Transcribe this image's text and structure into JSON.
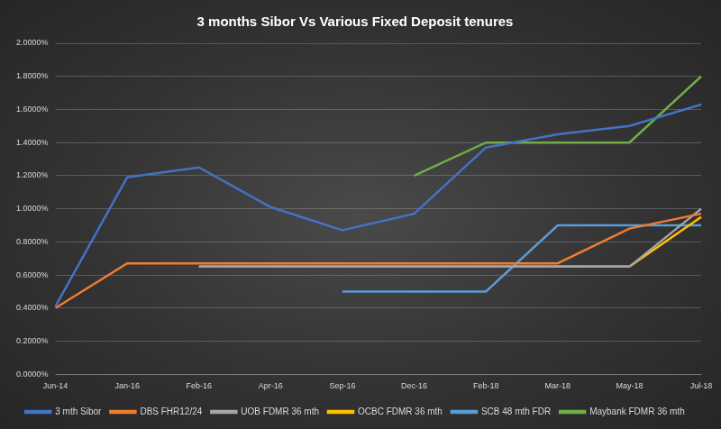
{
  "chart_data": {
    "type": "line",
    "title": "3 months Sibor Vs Various Fixed Deposit tenures",
    "categories": [
      "Jun-14",
      "Jan-16",
      "Feb-16",
      "Apr-16",
      "Sep-16",
      "Dec-16",
      "Feb-18",
      "Mar-18",
      "May-18",
      "Jul-18"
    ],
    "series": [
      {
        "name": "3 mth Sibor",
        "color": "#4472c4",
        "values": [
          0.41,
          1.19,
          1.25,
          1.01,
          0.87,
          0.97,
          1.37,
          1.45,
          1.5,
          1.63
        ]
      },
      {
        "name": "DBS FHR12/24",
        "color": "#ed7d31",
        "values": [
          0.4,
          0.67,
          0.67,
          0.67,
          0.67,
          0.67,
          0.67,
          0.67,
          0.88,
          0.97
        ]
      },
      {
        "name": "UOB FDMR 36 mth",
        "color": "#a5a5a5",
        "values": [
          null,
          null,
          0.65,
          0.65,
          0.65,
          0.65,
          0.65,
          0.65,
          0.65,
          1.0
        ]
      },
      {
        "name": "OCBC FDMR 36 mth",
        "color": "#ffc000",
        "values": [
          null,
          null,
          0.65,
          0.65,
          0.65,
          0.65,
          0.65,
          0.65,
          0.65,
          0.95
        ]
      },
      {
        "name": "SCB 48 mth FDR",
        "color": "#5b9bd5",
        "values": [
          null,
          null,
          null,
          null,
          0.5,
          0.5,
          0.5,
          0.9,
          0.9,
          0.9
        ]
      },
      {
        "name": "Maybank FDMR 36 mth",
        "color": "#70ad47",
        "values": [
          null,
          null,
          null,
          null,
          null,
          1.2,
          1.4,
          1.4,
          1.4,
          1.8
        ]
      }
    ],
    "ylim": [
      0,
      2
    ],
    "yticks": [
      {
        "value": 0,
        "label": "0.0000%"
      },
      {
        "value": 0.2,
        "label": "0.2000%"
      },
      {
        "value": 0.4,
        "label": "0.4000%"
      },
      {
        "value": 0.6,
        "label": "0.6000%"
      },
      {
        "value": 0.8,
        "label": "0.8000%"
      },
      {
        "value": 1.0,
        "label": "1.0000%"
      },
      {
        "value": 1.2,
        "label": "1.2000%"
      },
      {
        "value": 1.4,
        "label": "1.4000%"
      },
      {
        "value": 1.6,
        "label": "1.6000%"
      },
      {
        "value": 1.8,
        "label": "1.8000%"
      },
      {
        "value": 2.0,
        "label": "2.0000%"
      }
    ],
    "grid": true,
    "legend": "bottom"
  }
}
